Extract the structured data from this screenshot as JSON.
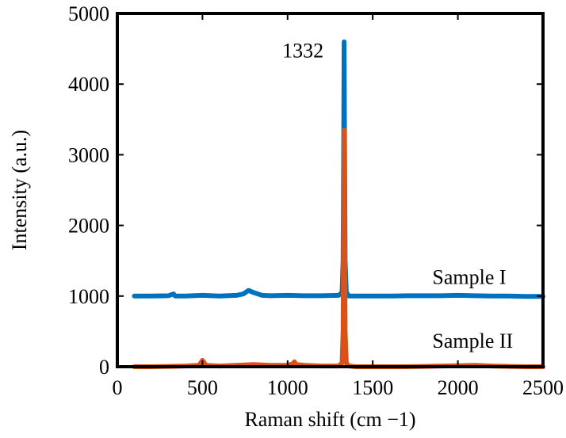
{
  "chart_data": {
    "type": "line",
    "title": "",
    "xlabel": "Raman shift (cm −1)",
    "ylabel": "Intensity (a.u.)",
    "xlim": [
      0,
      2500
    ],
    "ylim": [
      0,
      5000
    ],
    "xticks": [
      0,
      500,
      1000,
      1500,
      2000,
      2500
    ],
    "yticks": [
      0,
      1000,
      2000,
      3000,
      4000,
      5000
    ],
    "xtick_labels": [
      "0",
      "500",
      "1000",
      "1500",
      "2000",
      "2500"
    ],
    "ytick_labels": [
      "0",
      "1000",
      "2000",
      "3000",
      "4000",
      "5000"
    ],
    "grid": false,
    "legend": "none",
    "annotations": [
      {
        "text": "1332",
        "x": 1332,
        "y": 4600
      }
    ],
    "series": [
      {
        "name": "Sample I",
        "color": "#0072BD",
        "x": [
          100,
          200,
          300,
          330,
          340,
          350,
          400,
          500,
          600,
          700,
          740,
          770,
          800,
          850,
          900,
          1000,
          1100,
          1200,
          1300,
          1320,
          1326,
          1330,
          1332,
          1334,
          1338,
          1345,
          1360,
          1400,
          1500,
          1600,
          1700,
          1800,
          1900,
          2000,
          2100,
          2200,
          2300,
          2400,
          2500
        ],
        "y": [
          1000,
          1000,
          1005,
          1030,
          1000,
          1000,
          1000,
          1010,
          1000,
          1010,
          1030,
          1080,
          1050,
          1010,
          1005,
          1010,
          1005,
          1005,
          1010,
          1050,
          1500,
          3500,
          4600,
          3500,
          1500,
          1050,
          1000,
          1000,
          1000,
          1000,
          1005,
          1005,
          1005,
          1010,
          1005,
          1000,
          1000,
          995,
          995
        ]
      },
      {
        "name": "Sample II",
        "color": "#D95319",
        "x": [
          100,
          200,
          300,
          400,
          480,
          500,
          520,
          600,
          700,
          800,
          900,
          1000,
          1030,
          1040,
          1050,
          1100,
          1200,
          1300,
          1320,
          1326,
          1330,
          1332,
          1334,
          1338,
          1345,
          1360,
          1400,
          1500,
          1600,
          1700,
          1800,
          1900,
          2000,
          2100,
          2200,
          2300,
          2400,
          2500
        ],
        "y": [
          0,
          0,
          5,
          10,
          20,
          90,
          20,
          10,
          20,
          30,
          20,
          20,
          40,
          70,
          30,
          20,
          10,
          10,
          50,
          500,
          2500,
          3350,
          2500,
          500,
          50,
          10,
          0,
          0,
          0,
          0,
          5,
          10,
          15,
          20,
          10,
          5,
          0,
          0
        ]
      }
    ],
    "series_labels": [
      {
        "text": "Sample I",
        "x": 1850,
        "y": 1170
      },
      {
        "text": "Sample II",
        "x": 1850,
        "y": 270
      }
    ]
  }
}
